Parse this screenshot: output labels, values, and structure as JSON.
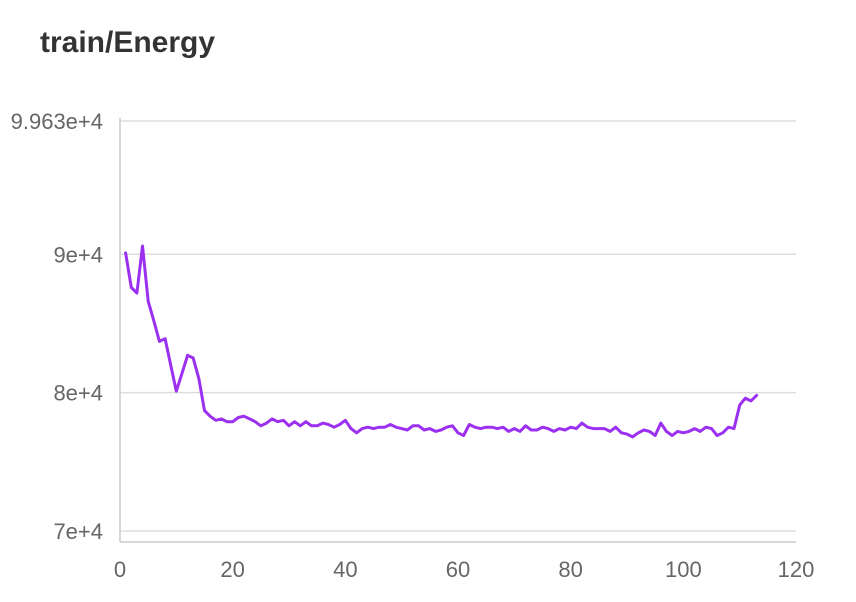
{
  "chart_data": {
    "type": "line",
    "title": "train/Energy",
    "xlabel": "",
    "ylabel": "",
    "xlim": [
      0,
      120
    ],
    "ylim": [
      70000,
      99630
    ],
    "x_ticks": [
      "0",
      "20",
      "40",
      "60",
      "80",
      "100",
      "120"
    ],
    "y_ticks": [
      {
        "value": 70000,
        "label": "7e+4"
      },
      {
        "value": 80000,
        "label": "8e+4"
      },
      {
        "value": 90000,
        "label": "9e+4"
      },
      {
        "value": 99630,
        "label": "9.963e+4"
      }
    ],
    "grid": true,
    "legend": "none",
    "series": [
      {
        "color": "#9b30f0",
        "x": [
          1,
          2,
          3,
          4,
          5,
          6,
          7,
          8,
          9,
          10,
          11,
          12,
          13,
          14,
          15,
          16,
          17,
          18,
          19,
          20,
          21,
          22,
          23,
          24,
          25,
          26,
          27,
          28,
          29,
          30,
          31,
          32,
          33,
          34,
          35,
          36,
          37,
          38,
          39,
          40,
          41,
          42,
          43,
          44,
          45,
          46,
          47,
          48,
          49,
          50,
          51,
          52,
          53,
          54,
          55,
          56,
          57,
          58,
          59,
          60,
          61,
          62,
          63,
          64,
          65,
          66,
          67,
          68,
          69,
          70,
          71,
          72,
          73,
          74,
          75,
          76,
          77,
          78,
          79,
          80,
          81,
          82,
          83,
          84,
          85,
          86,
          87,
          88,
          89,
          90,
          91,
          92,
          93,
          94,
          95,
          96,
          97,
          98,
          99,
          100,
          101,
          102,
          103,
          104,
          105,
          106,
          107,
          108,
          109,
          110,
          111,
          112,
          113
        ],
        "y": [
          90100,
          87600,
          87200,
          90600,
          86600,
          85200,
          83700,
          83900,
          82000,
          80100,
          81400,
          82700,
          82500,
          81000,
          78700,
          78300,
          78000,
          78100,
          77900,
          77900,
          78200,
          78300,
          78100,
          77900,
          77600,
          77800,
          78100,
          77900,
          78000,
          77600,
          77900,
          77600,
          77900,
          77600,
          77600,
          77800,
          77700,
          77500,
          77700,
          78000,
          77400,
          77100,
          77400,
          77500,
          77400,
          77500,
          77500,
          77700,
          77500,
          77400,
          77300,
          77600,
          77600,
          77300,
          77400,
          77200,
          77300,
          77500,
          77600,
          77100,
          76900,
          77700,
          77500,
          77400,
          77500,
          77500,
          77400,
          77500,
          77200,
          77400,
          77200,
          77600,
          77300,
          77300,
          77500,
          77400,
          77200,
          77400,
          77300,
          77500,
          77400,
          77800,
          77500,
          77400,
          77400,
          77400,
          77200,
          77500,
          77100,
          77000,
          76800,
          77100,
          77300,
          77200,
          76900,
          77800,
          77200,
          76900,
          77200,
          77100,
          77200,
          77400,
          77200,
          77500,
          77400,
          76900,
          77100,
          77500,
          77400,
          79100,
          79600,
          79400,
          79800
        ]
      }
    ]
  }
}
